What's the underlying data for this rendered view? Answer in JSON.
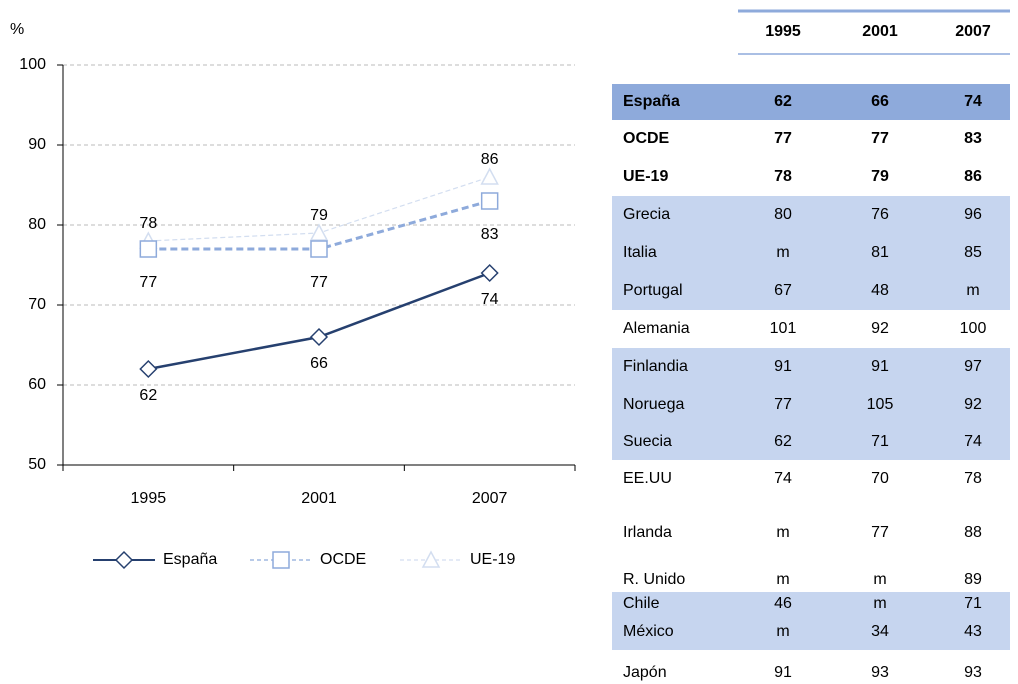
{
  "chart_data": {
    "type": "line",
    "y_label": "%",
    "categories": [
      "1995",
      "2001",
      "2007"
    ],
    "series": [
      {
        "name": "España",
        "color": "#26406f",
        "values": [
          62,
          66,
          74
        ]
      },
      {
        "name": "OCDE",
        "color": "#8eaadb",
        "values": [
          77,
          77,
          83
        ]
      },
      {
        "name": "UE-19",
        "color": "#d3def0",
        "values": [
          78,
          79,
          86
        ]
      }
    ],
    "ylim": [
      50,
      100
    ],
    "yticks": [
      50,
      60,
      70,
      80,
      90,
      100
    ],
    "grid": true
  },
  "table": {
    "columns": [
      "1995",
      "2001",
      "2007"
    ],
    "rows": [
      {
        "label": "España",
        "cells": [
          62,
          66,
          74
        ]
      },
      {
        "label": "OCDE",
        "cells": [
          77,
          77,
          83
        ]
      },
      {
        "label": "UE-19",
        "cells": [
          78,
          79,
          86
        ]
      },
      {
        "label": "Grecia",
        "cells": [
          80,
          76,
          96
        ]
      },
      {
        "label": "Italia",
        "cells": [
          "m",
          81,
          85
        ]
      },
      {
        "label": "Portugal",
        "cells": [
          67,
          48,
          "m"
        ]
      },
      {
        "label": "Alemania",
        "cells": [
          101,
          92,
          100
        ]
      },
      {
        "label": "Finlandia",
        "cells": [
          91,
          91,
          97
        ]
      },
      {
        "label": "Noruega",
        "cells": [
          77,
          105,
          92
        ]
      },
      {
        "label": "Suecia",
        "cells": [
          62,
          71,
          74
        ]
      },
      {
        "label": "EE.UU",
        "cells": [
          74,
          70,
          78
        ]
      },
      {
        "label": "Irlanda",
        "cells": [
          "m",
          77,
          88
        ]
      },
      {
        "label": "R. Unido",
        "cells": [
          "m",
          "m",
          89
        ]
      },
      {
        "label": "Chile",
        "cells": [
          46,
          "m",
          71
        ]
      },
      {
        "label": "México",
        "cells": [
          "m",
          34,
          43
        ]
      },
      {
        "label": "Japón",
        "cells": [
          91,
          93,
          93
        ]
      }
    ]
  }
}
